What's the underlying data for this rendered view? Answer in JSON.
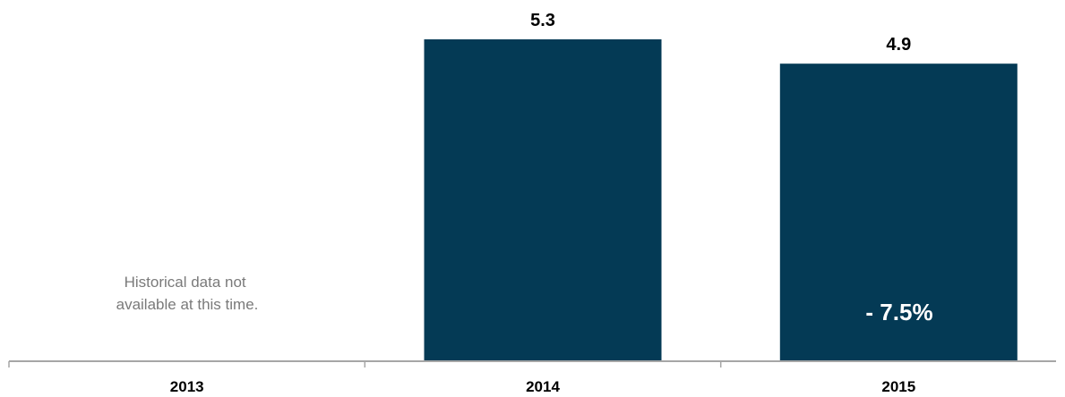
{
  "chart_data": {
    "type": "bar",
    "categories": [
      "2013",
      "2014",
      "2015"
    ],
    "values": [
      null,
      5.3,
      4.9
    ],
    "value_labels": [
      "",
      "5.3",
      "4.9"
    ],
    "ylim": [
      0,
      5.3
    ],
    "grid": false,
    "bar_color": "#043a55",
    "annotations": {
      "missing_note": [
        "Historical data not",
        "available at this time."
      ],
      "change": "- 7.5%"
    }
  }
}
